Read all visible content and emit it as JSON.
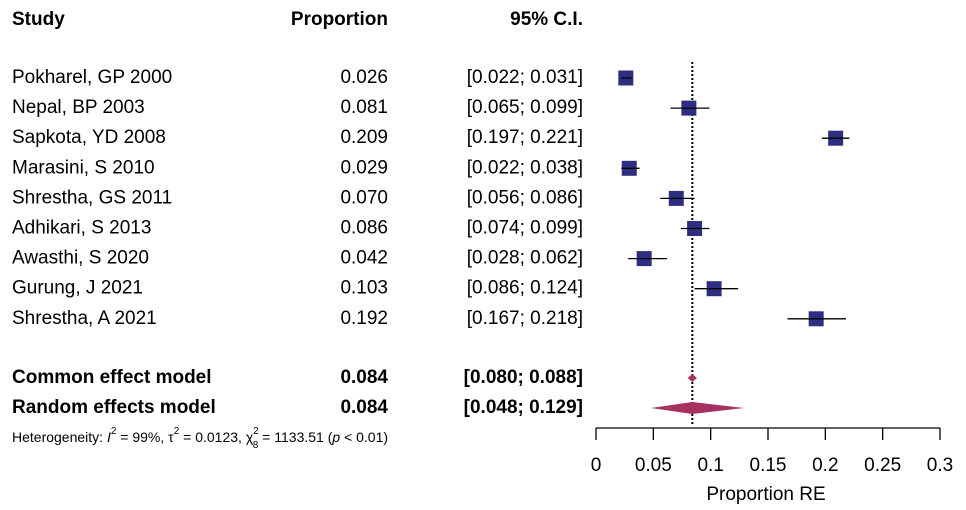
{
  "chart_data": {
    "type": "forest",
    "headers": {
      "study": "Study",
      "proportion": "Proportion",
      "ci": "95% C.I."
    },
    "studies": [
      "Pokharel, GP 2000",
      "Nepal, BP 2003",
      "Sapkota, YD 2008",
      "Marasini, S 2010",
      "Shrestha, GS 2011",
      "Adhikari, S 2013",
      "Awasthi, S 2020",
      "Gurung, J 2021",
      "Shrestha, A 2021"
    ],
    "values": [
      0.026,
      0.081,
      0.209,
      0.029,
      0.07,
      0.086,
      0.042,
      0.103,
      0.192
    ],
    "value_labels": [
      "0.026",
      "0.081",
      "0.209",
      "0.029",
      "0.070",
      "0.086",
      "0.042",
      "0.103",
      "0.192"
    ],
    "ci_lower": [
      0.022,
      0.065,
      0.197,
      0.022,
      0.056,
      0.074,
      0.028,
      0.086,
      0.167
    ],
    "ci_upper": [
      0.031,
      0.099,
      0.221,
      0.038,
      0.086,
      0.099,
      0.062,
      0.124,
      0.218
    ],
    "ci_labels": [
      "[0.022; 0.031]",
      "[0.065; 0.099]",
      "[0.197; 0.221]",
      "[0.022; 0.038]",
      "[0.056; 0.086]",
      "[0.074; 0.099]",
      "[0.028; 0.062]",
      "[0.086; 0.124]",
      "[0.167; 0.218]"
    ],
    "summary": {
      "names": [
        "Common effect model",
        "Random effects model"
      ],
      "values": [
        0.084,
        0.084
      ],
      "value_labels": [
        "0.084",
        "0.084"
      ],
      "ci_lower": [
        0.08,
        0.048
      ],
      "ci_upper": [
        0.088,
        0.129
      ],
      "ci_labels": [
        "[0.080; 0.088]",
        "[0.048; 0.129]"
      ]
    },
    "heterogeneity_parts": [
      "Heterogeneity: ",
      "I",
      "2",
      " = 99%, τ",
      "2",
      " = 0.0123, χ",
      "2",
      "8",
      " = 1133.51 (",
      "p",
      " < 0.01)"
    ],
    "x_label": "Proportion RE",
    "xlim": [
      0,
      0.3
    ],
    "xticks": [
      0,
      0.05,
      0.1,
      0.15,
      0.2,
      0.25,
      0.3
    ],
    "colors": {
      "study": "#2e2e80",
      "summary": "#a8305f"
    }
  }
}
